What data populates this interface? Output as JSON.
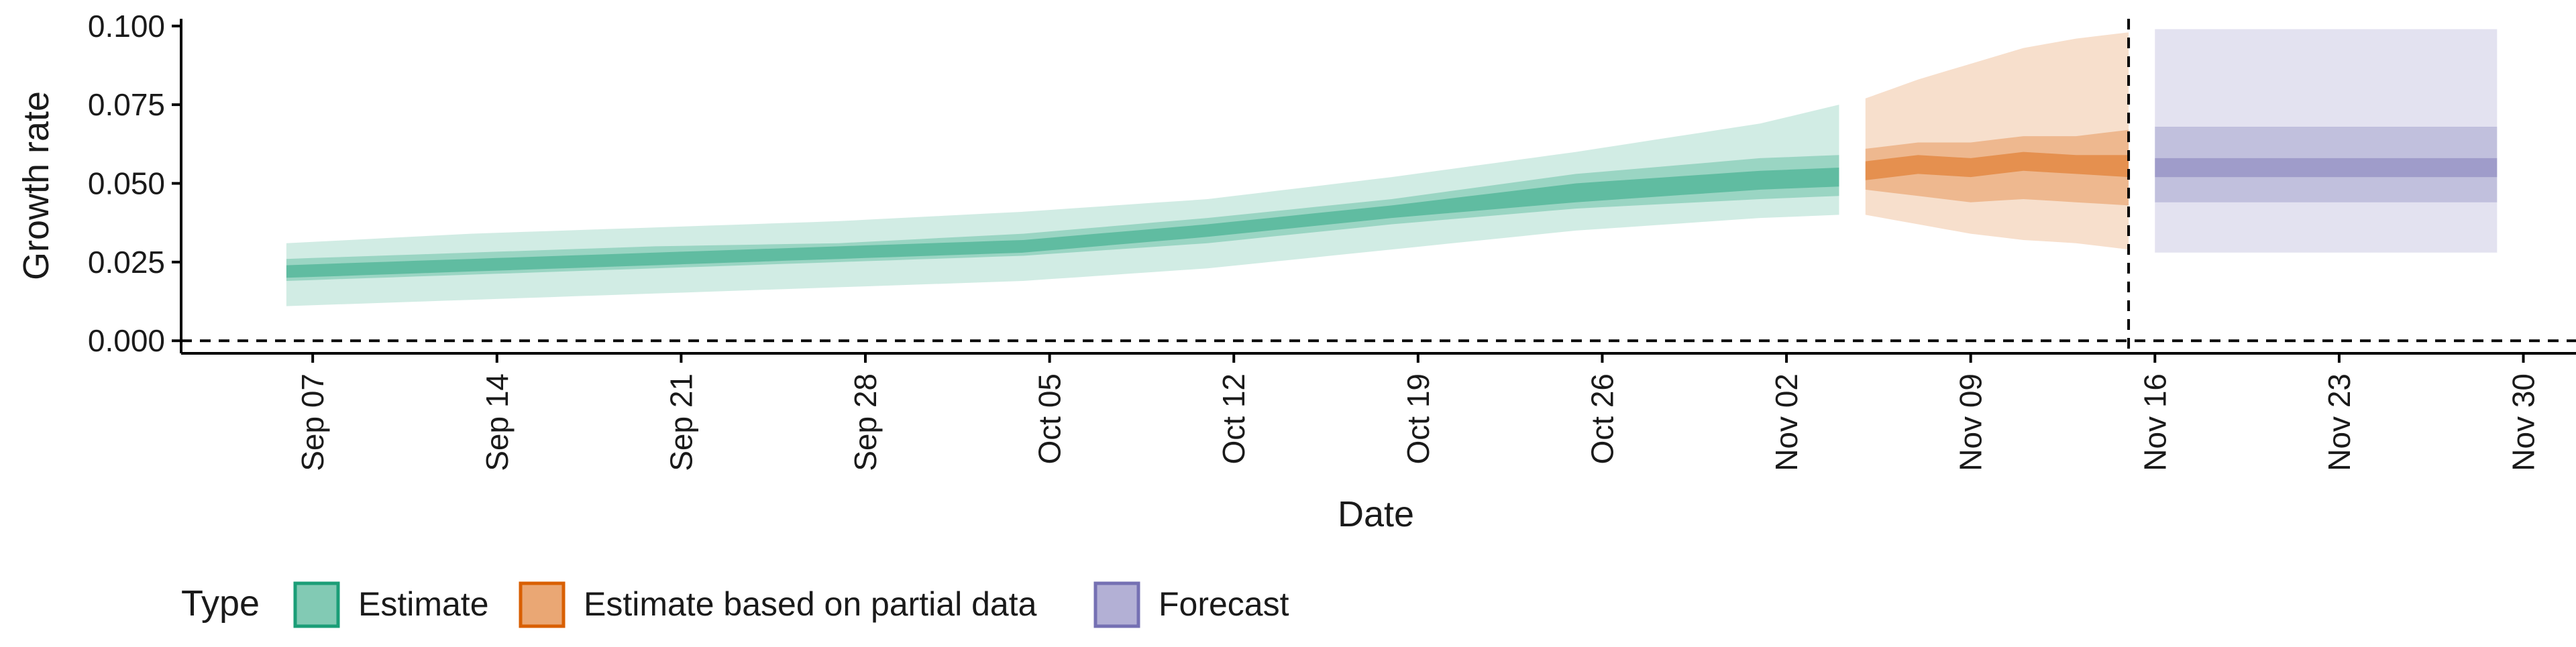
{
  "chart_data": {
    "type": "area",
    "xlabel": "Date",
    "ylabel": "Growth rate",
    "xlim": [
      "2020-09-02",
      "2020-12-02"
    ],
    "ylim": [
      -0.004,
      0.104
    ],
    "x_ticks": [
      "2020-09-07",
      "2020-09-14",
      "2020-09-21",
      "2020-09-28",
      "2020-10-05",
      "2020-10-12",
      "2020-10-19",
      "2020-10-26",
      "2020-11-02",
      "2020-11-09",
      "2020-11-16",
      "2020-11-23",
      "2020-11-30"
    ],
    "x_tick_labels": [
      "Sep 07",
      "Sep 14",
      "Sep 21",
      "Sep 28",
      "Oct 05",
      "Oct 12",
      "Oct 19",
      "Oct 26",
      "Nov 02",
      "Nov 09",
      "Nov 16",
      "Nov 23",
      "Nov 30"
    ],
    "y_ticks": [
      0.0,
      0.025,
      0.05,
      0.075,
      0.1
    ],
    "y_tick_labels": [
      "0.000",
      "0.025",
      "0.050",
      "0.075",
      "0.100"
    ],
    "hline_dashed": 0,
    "vline_dashed": "2020-11-15",
    "grid": false,
    "legend": {
      "title": "Type",
      "position": "bottom",
      "entries": [
        "Estimate",
        "Estimate based on partial data",
        "Forecast"
      ]
    },
    "series": [
      {
        "name": "Estimate",
        "color": "#1b9e77",
        "x": [
          "2020-09-06",
          "2020-09-13",
          "2020-09-20",
          "2020-09-27",
          "2020-10-04",
          "2020-10-11",
          "2020-10-18",
          "2020-10-25",
          "2020-11-01",
          "2020-11-04"
        ],
        "median": [
          0.022,
          0.024,
          0.026,
          0.028,
          0.03,
          0.035,
          0.041,
          0.047,
          0.051,
          0.052
        ],
        "lower_20": [
          0.02,
          0.022,
          0.024,
          0.026,
          0.028,
          0.033,
          0.039,
          0.044,
          0.048,
          0.049
        ],
        "upper_20": [
          0.024,
          0.026,
          0.028,
          0.03,
          0.032,
          0.037,
          0.043,
          0.05,
          0.054,
          0.055
        ],
        "lower_50": [
          0.019,
          0.021,
          0.023,
          0.025,
          0.027,
          0.031,
          0.037,
          0.042,
          0.045,
          0.046
        ],
        "upper_50": [
          0.026,
          0.028,
          0.03,
          0.031,
          0.034,
          0.039,
          0.045,
          0.053,
          0.058,
          0.059
        ],
        "lower_90": [
          0.011,
          0.013,
          0.015,
          0.017,
          0.019,
          0.023,
          0.029,
          0.035,
          0.039,
          0.04
        ],
        "upper_90": [
          0.031,
          0.034,
          0.036,
          0.038,
          0.041,
          0.045,
          0.052,
          0.06,
          0.069,
          0.075
        ]
      },
      {
        "name": "Estimate based on partial data",
        "color": "#d95f02",
        "x": [
          "2020-11-05",
          "2020-11-07",
          "2020-11-09",
          "2020-11-11",
          "2020-11-13",
          "2020-11-15"
        ],
        "median": [
          0.054,
          0.056,
          0.055,
          0.057,
          0.056,
          0.056
        ],
        "lower_20": [
          0.051,
          0.053,
          0.052,
          0.054,
          0.053,
          0.052
        ],
        "upper_20": [
          0.057,
          0.059,
          0.058,
          0.06,
          0.059,
          0.059
        ],
        "lower_50": [
          0.048,
          0.046,
          0.044,
          0.045,
          0.044,
          0.043
        ],
        "upper_50": [
          0.061,
          0.063,
          0.063,
          0.065,
          0.065,
          0.067
        ],
        "lower_90": [
          0.04,
          0.037,
          0.034,
          0.032,
          0.031,
          0.029
        ],
        "upper_90": [
          0.077,
          0.083,
          0.088,
          0.093,
          0.096,
          0.098
        ]
      },
      {
        "name": "Forecast",
        "color": "#7570b3",
        "x": [
          "2020-11-16",
          "2020-11-29"
        ],
        "median": [
          0.055,
          0.055
        ],
        "lower_20": [
          0.052,
          0.052
        ],
        "upper_20": [
          0.058,
          0.058
        ],
        "lower_50": [
          0.044,
          0.044
        ],
        "upper_50": [
          0.068,
          0.068
        ],
        "lower_90": [
          0.028,
          0.028
        ],
        "upper_90": [
          0.099,
          0.099
        ]
      }
    ]
  }
}
